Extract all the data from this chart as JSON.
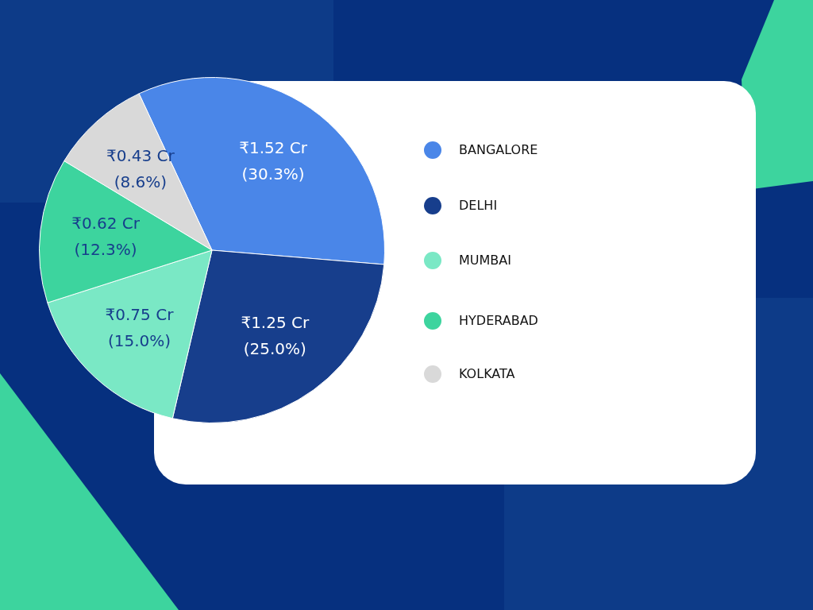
{
  "chart_data": {
    "type": "pie",
    "categories": [
      "BANGALORE",
      "DELHI",
      "MUMBAI",
      "HYDERABAD",
      "KOLKATA"
    ],
    "values": [
      1.52,
      1.25,
      0.75,
      0.62,
      0.43
    ],
    "colors": [
      "#4a86e8",
      "#173e8c",
      "#7ae8c5",
      "#3dd49e",
      "#d9d9d9"
    ],
    "value_labels": [
      "₹1.52 Cr (30.3%)",
      "₹1.25 Cr (25.0%)",
      "₹0.75 Cr (15.0%)",
      "₹0.62 Cr (12.3%)",
      "₹0.43 Cr (8.6%)"
    ],
    "legend": "right"
  }
}
